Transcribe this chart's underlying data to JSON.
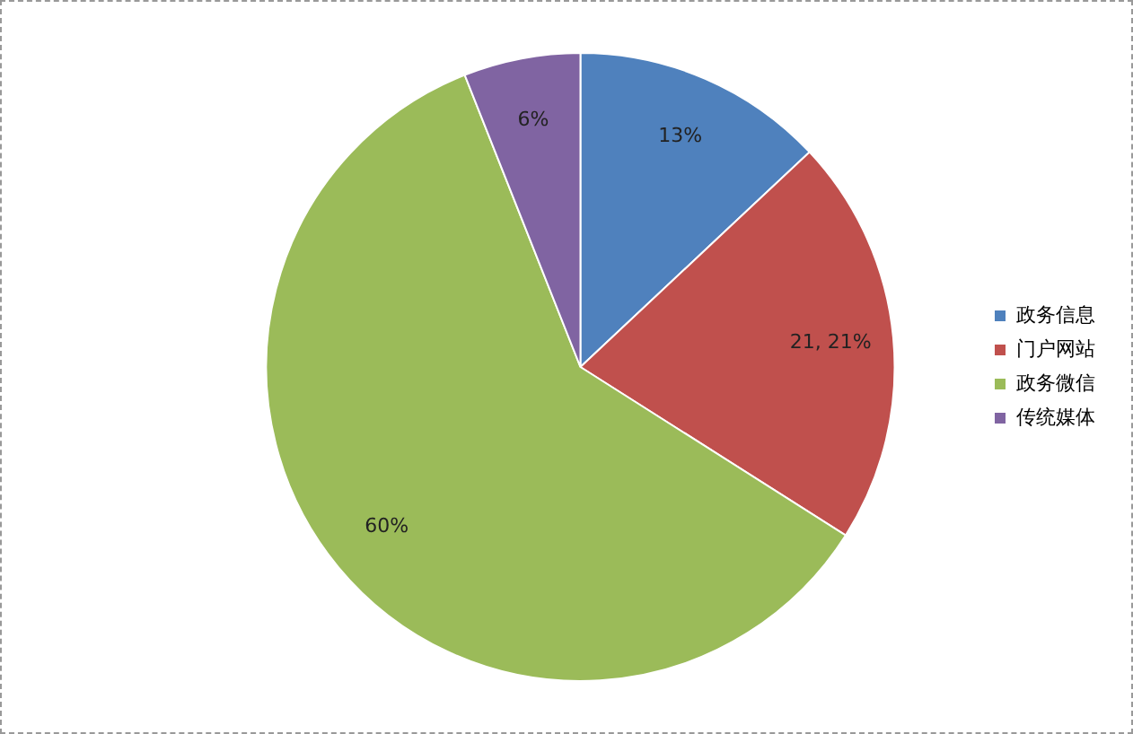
{
  "chart_data": {
    "type": "pie",
    "categories": [
      "政务信息",
      "门户网站",
      "政务微信",
      "传统媒体"
    ],
    "values": [
      13,
      21,
      60,
      6
    ],
    "colors": [
      "#4f81bd",
      "#c0504d",
      "#9bbb59",
      "#8064a2"
    ],
    "value_labels": [
      "13%",
      "21, 21%",
      "60%",
      "6%"
    ],
    "legend": "right"
  }
}
